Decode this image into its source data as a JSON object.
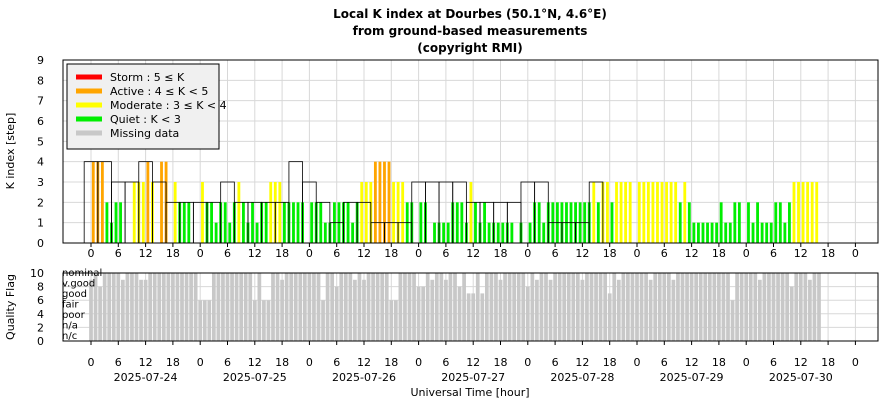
{
  "title": [
    "Local K index at Dourbes (50.1°N, 4.6°E)",
    "from ground-based measurements",
    "(copyright RMI)"
  ],
  "colors": {
    "storm": "#ff0000",
    "active": "#ffa500",
    "moderate": "#ffff00",
    "quiet": "#00ee00",
    "missing": "#c8c8c8",
    "grid": "#d8d8d8",
    "outline": "#000000"
  },
  "legend": [
    {
      "key": "storm",
      "label": "Storm : 5 ≤ K"
    },
    {
      "key": "active",
      "label": "Active : 4 ≤ K < 5"
    },
    {
      "key": "moderate",
      "label": "Moderate : 3 ≤ K < 4"
    },
    {
      "key": "quiet",
      "label": "Quiet : K < 3"
    },
    {
      "key": "missing",
      "label": "Missing data"
    }
  ],
  "chart_data": [
    {
      "type": "bar",
      "ylabel": "K index [step]",
      "ylim": [
        0,
        9
      ],
      "yticks": [
        0,
        1,
        2,
        3,
        4,
        5,
        6,
        7,
        8,
        9
      ],
      "x_hour_ticks": [
        "0",
        "6",
        "12",
        "18",
        "0",
        "6",
        "12",
        "18",
        "0",
        "6",
        "12",
        "18",
        "0",
        "6",
        "12",
        "18",
        "0",
        "6",
        "12",
        "18",
        "0",
        "6",
        "12",
        "18",
        "0",
        "6",
        "12",
        "18",
        "0"
      ],
      "xlim_hours": [
        0,
        168
      ],
      "legend_position": "top-left",
      "grid": true,
      "three_hour_K": [
        4,
        4,
        3,
        3,
        4,
        3,
        2,
        2,
        2,
        2,
        3,
        2,
        2,
        2,
        2,
        4,
        3,
        2,
        1,
        2,
        2,
        1,
        1,
        1,
        3,
        3,
        3,
        3,
        2,
        2,
        2,
        2,
        3,
        3,
        1,
        1,
        1,
        3
      ],
      "three_hour_start_day": 0,
      "nowcast_bars": [
        {
          "day": 0,
          "hour": 0.5,
          "k": 4
        },
        {
          "day": 0,
          "hour": 1.5,
          "k": 4
        },
        {
          "day": 0,
          "hour": 2.5,
          "k": 4
        },
        {
          "day": 0,
          "hour": 3.5,
          "k": 2
        },
        {
          "day": 0,
          "hour": 4.5,
          "k": 1
        },
        {
          "day": 0,
          "hour": 5.5,
          "k": 2
        },
        {
          "day": 0,
          "hour": 6.5,
          "k": 2
        },
        {
          "day": 0,
          "hour": 9.5,
          "k": 3
        },
        {
          "day": 0,
          "hour": 10.5,
          "k": 3
        },
        {
          "day": 0,
          "hour": 11.5,
          "k": 3
        },
        {
          "day": 0,
          "hour": 12.5,
          "k": 4
        },
        {
          "day": 0,
          "hour": 13.5,
          "k": 3
        },
        {
          "day": 0,
          "hour": 15.5,
          "k": 4
        },
        {
          "day": 0,
          "hour": 16.5,
          "k": 4
        },
        {
          "day": 0,
          "hour": 18.5,
          "k": 3
        },
        {
          "day": 0,
          "hour": 19.5,
          "k": 2
        },
        {
          "day": 0,
          "hour": 20.5,
          "k": 2
        },
        {
          "day": 0,
          "hour": 21.5,
          "k": 2
        },
        {
          "day": 1,
          "hour": 0.5,
          "k": 3
        },
        {
          "day": 1,
          "hour": 1.5,
          "k": 2
        },
        {
          "day": 1,
          "hour": 2.5,
          "k": 2
        },
        {
          "day": 1,
          "hour": 3.5,
          "k": 1
        },
        {
          "day": 1,
          "hour": 4.5,
          "k": 2
        },
        {
          "day": 1,
          "hour": 5.5,
          "k": 2
        },
        {
          "day": 1,
          "hour": 6.5,
          "k": 1
        },
        {
          "day": 1,
          "hour": 7.5,
          "k": 2
        },
        {
          "day": 1,
          "hour": 8.5,
          "k": 3
        },
        {
          "day": 1,
          "hour": 9.5,
          "k": 2
        },
        {
          "day": 1,
          "hour": 10.5,
          "k": 1
        },
        {
          "day": 1,
          "hour": 11.5,
          "k": 2
        },
        {
          "day": 1,
          "hour": 12.5,
          "k": 1
        },
        {
          "day": 1,
          "hour": 13.5,
          "k": 2
        },
        {
          "day": 1,
          "hour": 14.5,
          "k": 2
        },
        {
          "day": 1,
          "hour": 15.5,
          "k": 3
        },
        {
          "day": 1,
          "hour": 16.5,
          "k": 3
        },
        {
          "day": 1,
          "hour": 17.5,
          "k": 3
        },
        {
          "day": 1,
          "hour": 18.5,
          "k": 2
        },
        {
          "day": 1,
          "hour": 19.5,
          "k": 2
        },
        {
          "day": 1,
          "hour": 20.5,
          "k": 2
        },
        {
          "day": 1,
          "hour": 21.5,
          "k": 2
        },
        {
          "day": 1,
          "hour": 22.5,
          "k": 2
        },
        {
          "day": 2,
          "hour": 0.5,
          "k": 2
        },
        {
          "day": 2,
          "hour": 1.5,
          "k": 2
        },
        {
          "day": 2,
          "hour": 2.5,
          "k": 2
        },
        {
          "day": 2,
          "hour": 3.5,
          "k": 1
        },
        {
          "day": 2,
          "hour": 4.5,
          "k": 1
        },
        {
          "day": 2,
          "hour": 5.5,
          "k": 2
        },
        {
          "day": 2,
          "hour": 6.5,
          "k": 2
        },
        {
          "day": 2,
          "hour": 7.5,
          "k": 2
        },
        {
          "day": 2,
          "hour": 8.5,
          "k": 2
        },
        {
          "day": 2,
          "hour": 9.5,
          "k": 1
        },
        {
          "day": 2,
          "hour": 10.5,
          "k": 2
        },
        {
          "day": 2,
          "hour": 11.5,
          "k": 3
        },
        {
          "day": 2,
          "hour": 12.5,
          "k": 3
        },
        {
          "day": 2,
          "hour": 13.5,
          "k": 3
        },
        {
          "day": 2,
          "hour": 14.5,
          "k": 4
        },
        {
          "day": 2,
          "hour": 15.5,
          "k": 4
        },
        {
          "day": 2,
          "hour": 16.5,
          "k": 4
        },
        {
          "day": 2,
          "hour": 17.5,
          "k": 4
        },
        {
          "day": 2,
          "hour": 18.5,
          "k": 3
        },
        {
          "day": 2,
          "hour": 19.5,
          "k": 3
        },
        {
          "day": 2,
          "hour": 20.5,
          "k": 3
        },
        {
          "day": 2,
          "hour": 21.5,
          "k": 2
        },
        {
          "day": 2,
          "hour": 22.5,
          "k": 2
        },
        {
          "day": 3,
          "hour": 0.5,
          "k": 2
        },
        {
          "day": 3,
          "hour": 1.5,
          "k": 2
        },
        {
          "day": 3,
          "hour": 3.5,
          "k": 1
        },
        {
          "day": 3,
          "hour": 4.5,
          "k": 1
        },
        {
          "day": 3,
          "hour": 5.5,
          "k": 1
        },
        {
          "day": 3,
          "hour": 6.5,
          "k": 1
        },
        {
          "day": 3,
          "hour": 7.5,
          "k": 2
        },
        {
          "day": 3,
          "hour": 8.5,
          "k": 2
        },
        {
          "day": 3,
          "hour": 9.5,
          "k": 2
        },
        {
          "day": 3,
          "hour": 10.5,
          "k": 1
        },
        {
          "day": 3,
          "hour": 11.5,
          "k": 3
        },
        {
          "day": 3,
          "hour": 12.5,
          "k": 2
        },
        {
          "day": 3,
          "hour": 13.5,
          "k": 1
        },
        {
          "day": 3,
          "hour": 14.5,
          "k": 2
        },
        {
          "day": 3,
          "hour": 15.5,
          "k": 1
        },
        {
          "day": 3,
          "hour": 16.5,
          "k": 1
        },
        {
          "day": 3,
          "hour": 17.5,
          "k": 1
        },
        {
          "day": 3,
          "hour": 18.5,
          "k": 1
        },
        {
          "day": 3,
          "hour": 19.5,
          "k": 1
        },
        {
          "day": 3,
          "hour": 20.5,
          "k": 1
        },
        {
          "day": 3,
          "hour": 22.5,
          "k": 1
        },
        {
          "day": 4,
          "hour": 0.5,
          "k": 1
        },
        {
          "day": 4,
          "hour": 1.5,
          "k": 2
        },
        {
          "day": 4,
          "hour": 2.5,
          "k": 2
        },
        {
          "day": 4,
          "hour": 3.5,
          "k": 1
        },
        {
          "day": 4,
          "hour": 4.5,
          "k": 2
        },
        {
          "day": 4,
          "hour": 5.5,
          "k": 2
        },
        {
          "day": 4,
          "hour": 6.5,
          "k": 2
        },
        {
          "day": 4,
          "hour": 7.5,
          "k": 2
        },
        {
          "day": 4,
          "hour": 8.5,
          "k": 2
        },
        {
          "day": 4,
          "hour": 9.5,
          "k": 2
        },
        {
          "day": 4,
          "hour": 10.5,
          "k": 2
        },
        {
          "day": 4,
          "hour": 11.5,
          "k": 2
        },
        {
          "day": 4,
          "hour": 12.5,
          "k": 2
        },
        {
          "day": 4,
          "hour": 13.5,
          "k": 2
        },
        {
          "day": 4,
          "hour": 14.5,
          "k": 3
        },
        {
          "day": 4,
          "hour": 15.5,
          "k": 2
        },
        {
          "day": 4,
          "hour": 16.5,
          "k": 3
        },
        {
          "day": 4,
          "hour": 17.5,
          "k": 3
        },
        {
          "day": 4,
          "hour": 18.5,
          "k": 2
        },
        {
          "day": 4,
          "hour": 19.5,
          "k": 3
        },
        {
          "day": 4,
          "hour": 20.5,
          "k": 3
        },
        {
          "day": 4,
          "hour": 21.5,
          "k": 3
        },
        {
          "day": 4,
          "hour": 22.5,
          "k": 3
        },
        {
          "day": 5,
          "hour": 0.5,
          "k": 3
        },
        {
          "day": 5,
          "hour": 1.5,
          "k": 3
        },
        {
          "day": 5,
          "hour": 2.5,
          "k": 3
        },
        {
          "day": 5,
          "hour": 3.5,
          "k": 3
        },
        {
          "day": 5,
          "hour": 4.5,
          "k": 3
        },
        {
          "day": 5,
          "hour": 5.5,
          "k": 3
        },
        {
          "day": 5,
          "hour": 6.5,
          "k": 3
        },
        {
          "day": 5,
          "hour": 7.5,
          "k": 3
        },
        {
          "day": 5,
          "hour": 8.5,
          "k": 3
        },
        {
          "day": 5,
          "hour": 9.5,
          "k": 2
        },
        {
          "day": 5,
          "hour": 10.5,
          "k": 3
        },
        {
          "day": 5,
          "hour": 11.5,
          "k": 2
        },
        {
          "day": 5,
          "hour": 12.5,
          "k": 1
        },
        {
          "day": 5,
          "hour": 13.5,
          "k": 1
        },
        {
          "day": 5,
          "hour": 14.5,
          "k": 1
        },
        {
          "day": 5,
          "hour": 15.5,
          "k": 1
        },
        {
          "day": 5,
          "hour": 16.5,
          "k": 1
        },
        {
          "day": 5,
          "hour": 17.5,
          "k": 1
        },
        {
          "day": 5,
          "hour": 18.5,
          "k": 2
        },
        {
          "day": 5,
          "hour": 19.5,
          "k": 1
        },
        {
          "day": 5,
          "hour": 20.5,
          "k": 1
        },
        {
          "day": 5,
          "hour": 21.5,
          "k": 2
        },
        {
          "day": 5,
          "hour": 22.5,
          "k": 2
        },
        {
          "day": 6,
          "hour": 0.5,
          "k": 2
        },
        {
          "day": 6,
          "hour": 1.5,
          "k": 1
        },
        {
          "day": 6,
          "hour": 2.5,
          "k": 2
        },
        {
          "day": 6,
          "hour": 3.5,
          "k": 1
        },
        {
          "day": 6,
          "hour": 4.5,
          "k": 1
        },
        {
          "day": 6,
          "hour": 5.5,
          "k": 1
        },
        {
          "day": 6,
          "hour": 6.5,
          "k": 2
        },
        {
          "day": 6,
          "hour": 7.5,
          "k": 2
        },
        {
          "day": 6,
          "hour": 8.5,
          "k": 1
        },
        {
          "day": 6,
          "hour": 9.5,
          "k": 2
        },
        {
          "day": 6,
          "hour": 10.5,
          "k": 3
        },
        {
          "day": 6,
          "hour": 11.5,
          "k": 3
        },
        {
          "day": 6,
          "hour": 12.5,
          "k": 3
        },
        {
          "day": 6,
          "hour": 13.5,
          "k": 3
        },
        {
          "day": 6,
          "hour": 14.5,
          "k": 3
        },
        {
          "day": 6,
          "hour": 15.5,
          "k": 3
        }
      ]
    },
    {
      "type": "bar",
      "ylabel": "Quality Flag",
      "ylim": [
        0,
        10
      ],
      "yticks": [
        0,
        2,
        4,
        6,
        8,
        10
      ],
      "category_labels": [
        "nominal",
        "v.good",
        "good",
        "fair",
        "poor",
        "n/a",
        "n/c"
      ],
      "xlabel": "Universal Time [hour]",
      "date_labels": [
        "2025-07-24",
        "2025-07-25",
        "2025-07-26",
        "2025-07-27",
        "2025-07-28",
        "2025-07-29",
        "2025-07-30"
      ],
      "quality_default": 10,
      "quality_dips": [
        {
          "day": 0,
          "hour": 0,
          "value": 9
        },
        {
          "day": 0,
          "hour": 2,
          "value": 8
        },
        {
          "day": 0,
          "hour": 7,
          "value": 9
        },
        {
          "day": 0,
          "hour": 11,
          "value": 9
        },
        {
          "day": 0,
          "hour": 12,
          "value": 9
        },
        {
          "day": 1,
          "hour": 0,
          "value": 6
        },
        {
          "day": 1,
          "hour": 1,
          "value": 6
        },
        {
          "day": 1,
          "hour": 2,
          "value": 6
        },
        {
          "day": 1,
          "hour": 12,
          "value": 6
        },
        {
          "day": 1,
          "hour": 14,
          "value": 6
        },
        {
          "day": 1,
          "hour": 15,
          "value": 6
        },
        {
          "day": 1,
          "hour": 18,
          "value": 9
        },
        {
          "day": 2,
          "hour": 3,
          "value": 6
        },
        {
          "day": 2,
          "hour": 6,
          "value": 8
        },
        {
          "day": 2,
          "hour": 10,
          "value": 9
        },
        {
          "day": 2,
          "hour": 12,
          "value": 9
        },
        {
          "day": 2,
          "hour": 18,
          "value": 6
        },
        {
          "day": 2,
          "hour": 19,
          "value": 6
        },
        {
          "day": 3,
          "hour": 0,
          "value": 8
        },
        {
          "day": 3,
          "hour": 1,
          "value": 8
        },
        {
          "day": 3,
          "hour": 3,
          "value": 9
        },
        {
          "day": 3,
          "hour": 6,
          "value": 9
        },
        {
          "day": 3,
          "hour": 9,
          "value": 8
        },
        {
          "day": 3,
          "hour": 11,
          "value": 7
        },
        {
          "day": 3,
          "hour": 12,
          "value": 7
        },
        {
          "day": 3,
          "hour": 14,
          "value": 7
        },
        {
          "day": 3,
          "hour": 18,
          "value": 9
        },
        {
          "day": 4,
          "hour": 0,
          "value": 8
        },
        {
          "day": 4,
          "hour": 2,
          "value": 9
        },
        {
          "day": 4,
          "hour": 5,
          "value": 9
        },
        {
          "day": 4,
          "hour": 12,
          "value": 9
        },
        {
          "day": 4,
          "hour": 18,
          "value": 7
        },
        {
          "day": 4,
          "hour": 20,
          "value": 9
        },
        {
          "day": 5,
          "hour": 3,
          "value": 9
        },
        {
          "day": 5,
          "hour": 8,
          "value": 9
        },
        {
          "day": 5,
          "hour": 21,
          "value": 6
        },
        {
          "day": 6,
          "hour": 3,
          "value": 9
        },
        {
          "day": 6,
          "hour": 10,
          "value": 8
        },
        {
          "day": 6,
          "hour": 14,
          "value": 9
        }
      ],
      "quality_end_day": 6,
      "quality_end_hour": 16
    }
  ]
}
